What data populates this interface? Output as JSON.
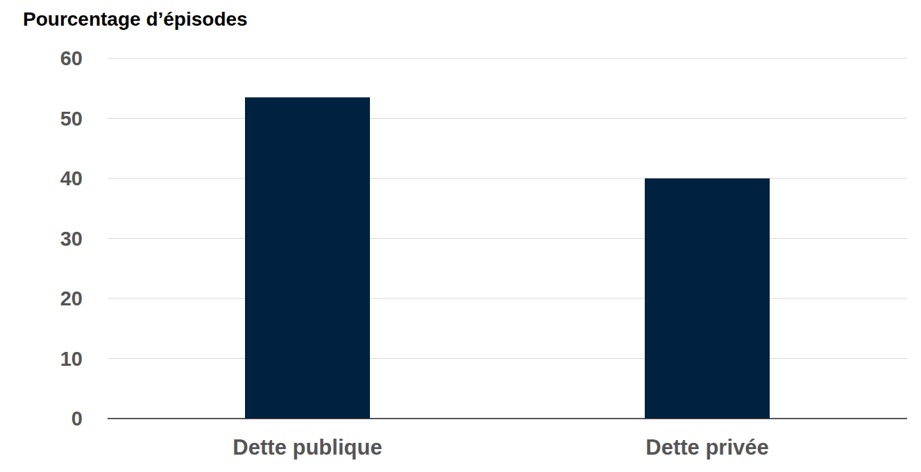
{
  "chart_data": {
    "type": "bar",
    "y_label": "Pourcentage d’épisodes",
    "categories": [
      "Dette publique",
      "Dette privée"
    ],
    "values": [
      53.5,
      40
    ],
    "color": "#00213f",
    "ylim": [
      0,
      60
    ],
    "yticks": [
      0,
      10,
      20,
      30,
      40,
      50,
      60
    ],
    "grid": true
  }
}
